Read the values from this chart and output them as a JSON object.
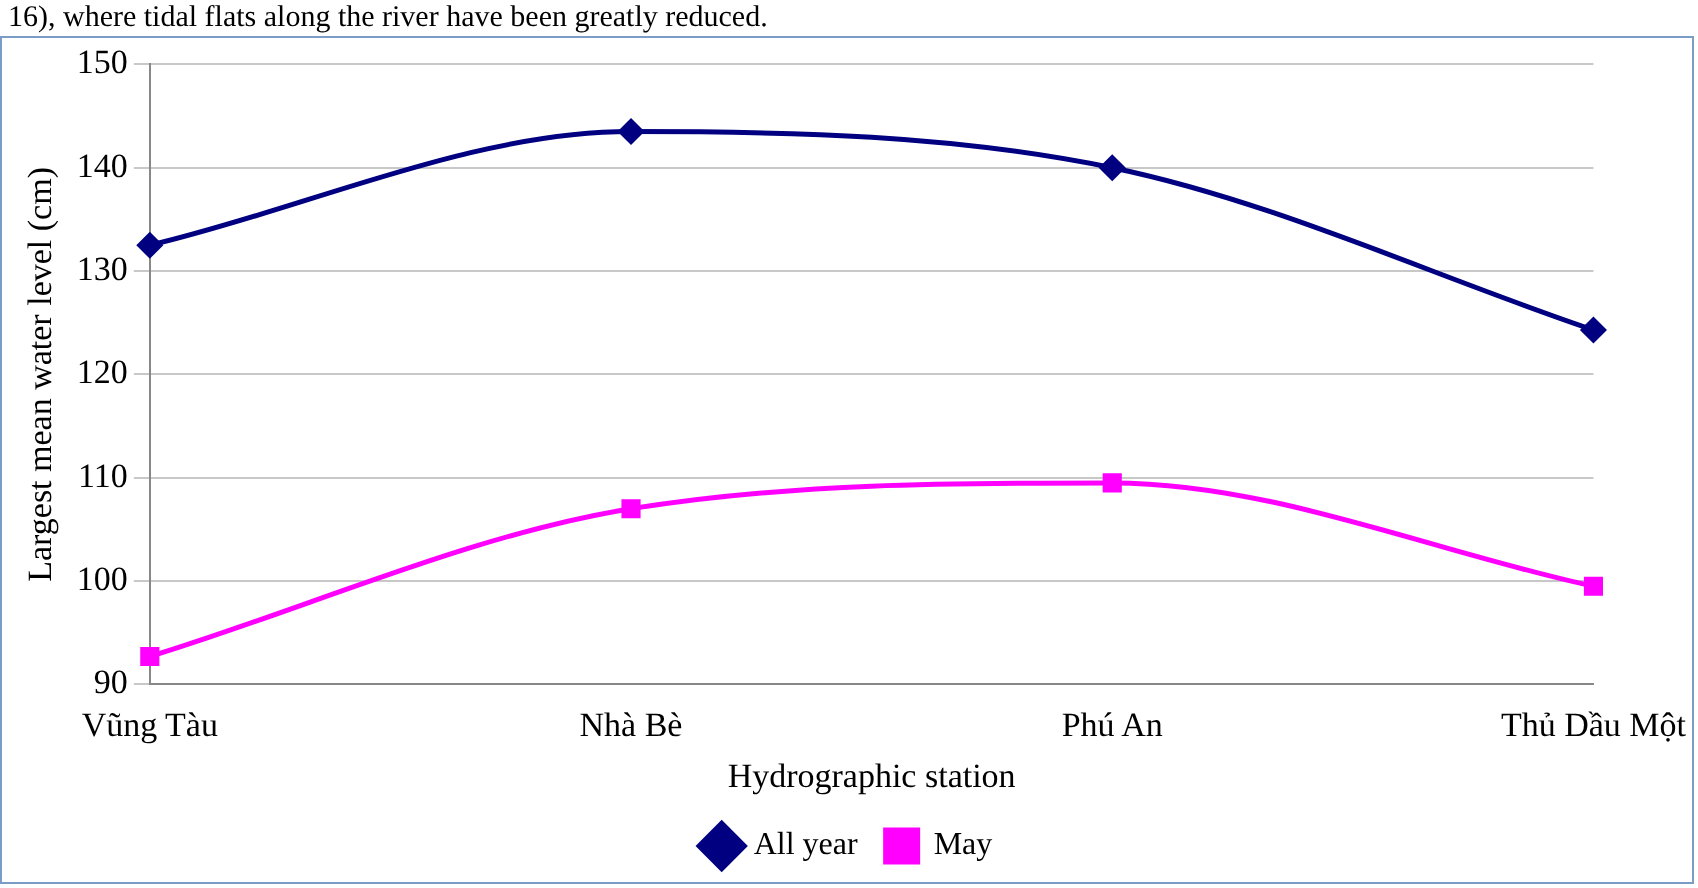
{
  "chart_data": {
    "type": "line",
    "xlabel": "Hydrographic station",
    "ylabel": "Largest mean water level (cm)",
    "annotations": [
      "16), where tidal flats along the river have been greatly reduced."
    ],
    "categories": [
      "Vũng Tàu",
      "Nhà Bè",
      "Phú An",
      "Thủ Dầu Một"
    ],
    "series": [
      {
        "name": "All year",
        "color": "#000080",
        "marker": "diamond",
        "values": [
          132.5,
          143.5,
          140,
          124.3
        ]
      },
      {
        "name": "May",
        "color": "#ff00ff",
        "marker": "square",
        "values": [
          92.7,
          107,
          109.5,
          99.5
        ]
      }
    ],
    "ylim": [
      90,
      150
    ],
    "yticks": [
      90,
      100,
      110,
      120,
      130,
      140,
      150
    ],
    "grid": "y",
    "legend": "bottom"
  }
}
